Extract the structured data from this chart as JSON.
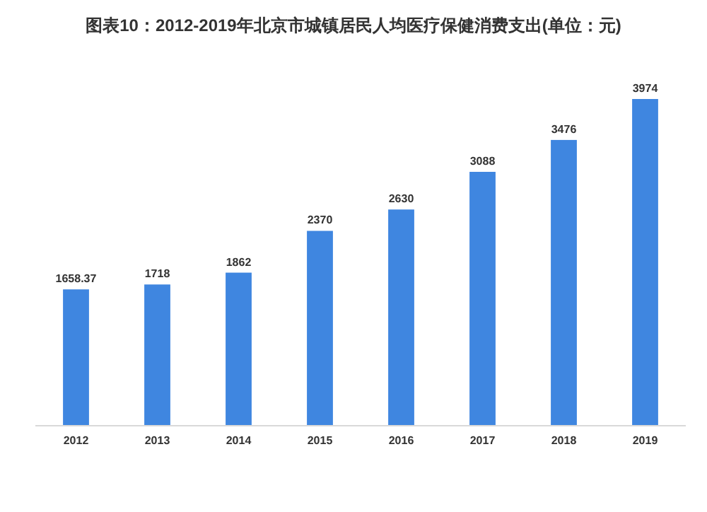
{
  "chart_data": {
    "type": "bar",
    "title": "图表10：2012-2019年北京市城镇居民人均医疗保健消费支出(单位：元)",
    "categories": [
      "2012",
      "2013",
      "2014",
      "2015",
      "2016",
      "2017",
      "2018",
      "2019"
    ],
    "values": [
      1658.37,
      1718,
      1862,
      2370,
      2630,
      3088,
      3476,
      3974
    ],
    "color": "#3f86e0",
    "data_labels": true
  }
}
